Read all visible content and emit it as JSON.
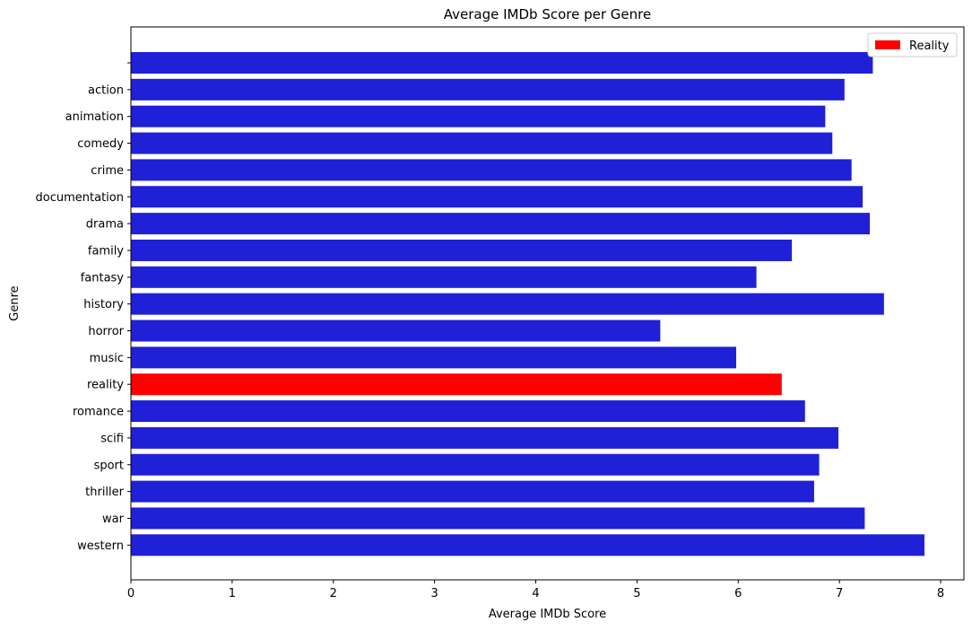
{
  "chart_data": {
    "type": "bar",
    "orientation": "horizontal",
    "title": "Average IMDb Score per Genre",
    "xlabel": "Average IMDb Score",
    "ylabel": "Genre",
    "xlim": [
      0,
      8.23
    ],
    "xticks": [
      "0",
      "1",
      "2",
      "3",
      "4",
      "5",
      "6",
      "7",
      "8"
    ],
    "grid": false,
    "legend": {
      "placement": "top-right",
      "entries": [
        {
          "label": "Reality",
          "color": "#ff0000"
        }
      ]
    },
    "colors": {
      "default": "#2020d6",
      "highlight": "#ff0000"
    },
    "categories": [
      "",
      "action",
      "animation",
      "comedy",
      "crime",
      "documentation",
      "drama",
      "family",
      "fantasy",
      "history",
      "horror",
      "music",
      "reality",
      "romance",
      "scifi",
      "sport",
      "thriller",
      "war",
      "western"
    ],
    "values": [
      7.33,
      7.05,
      6.86,
      6.93,
      7.12,
      7.23,
      7.3,
      6.53,
      6.18,
      7.44,
      5.23,
      5.98,
      6.43,
      6.66,
      6.99,
      6.8,
      6.75,
      7.25,
      7.84
    ],
    "highlight": [
      "reality"
    ]
  }
}
